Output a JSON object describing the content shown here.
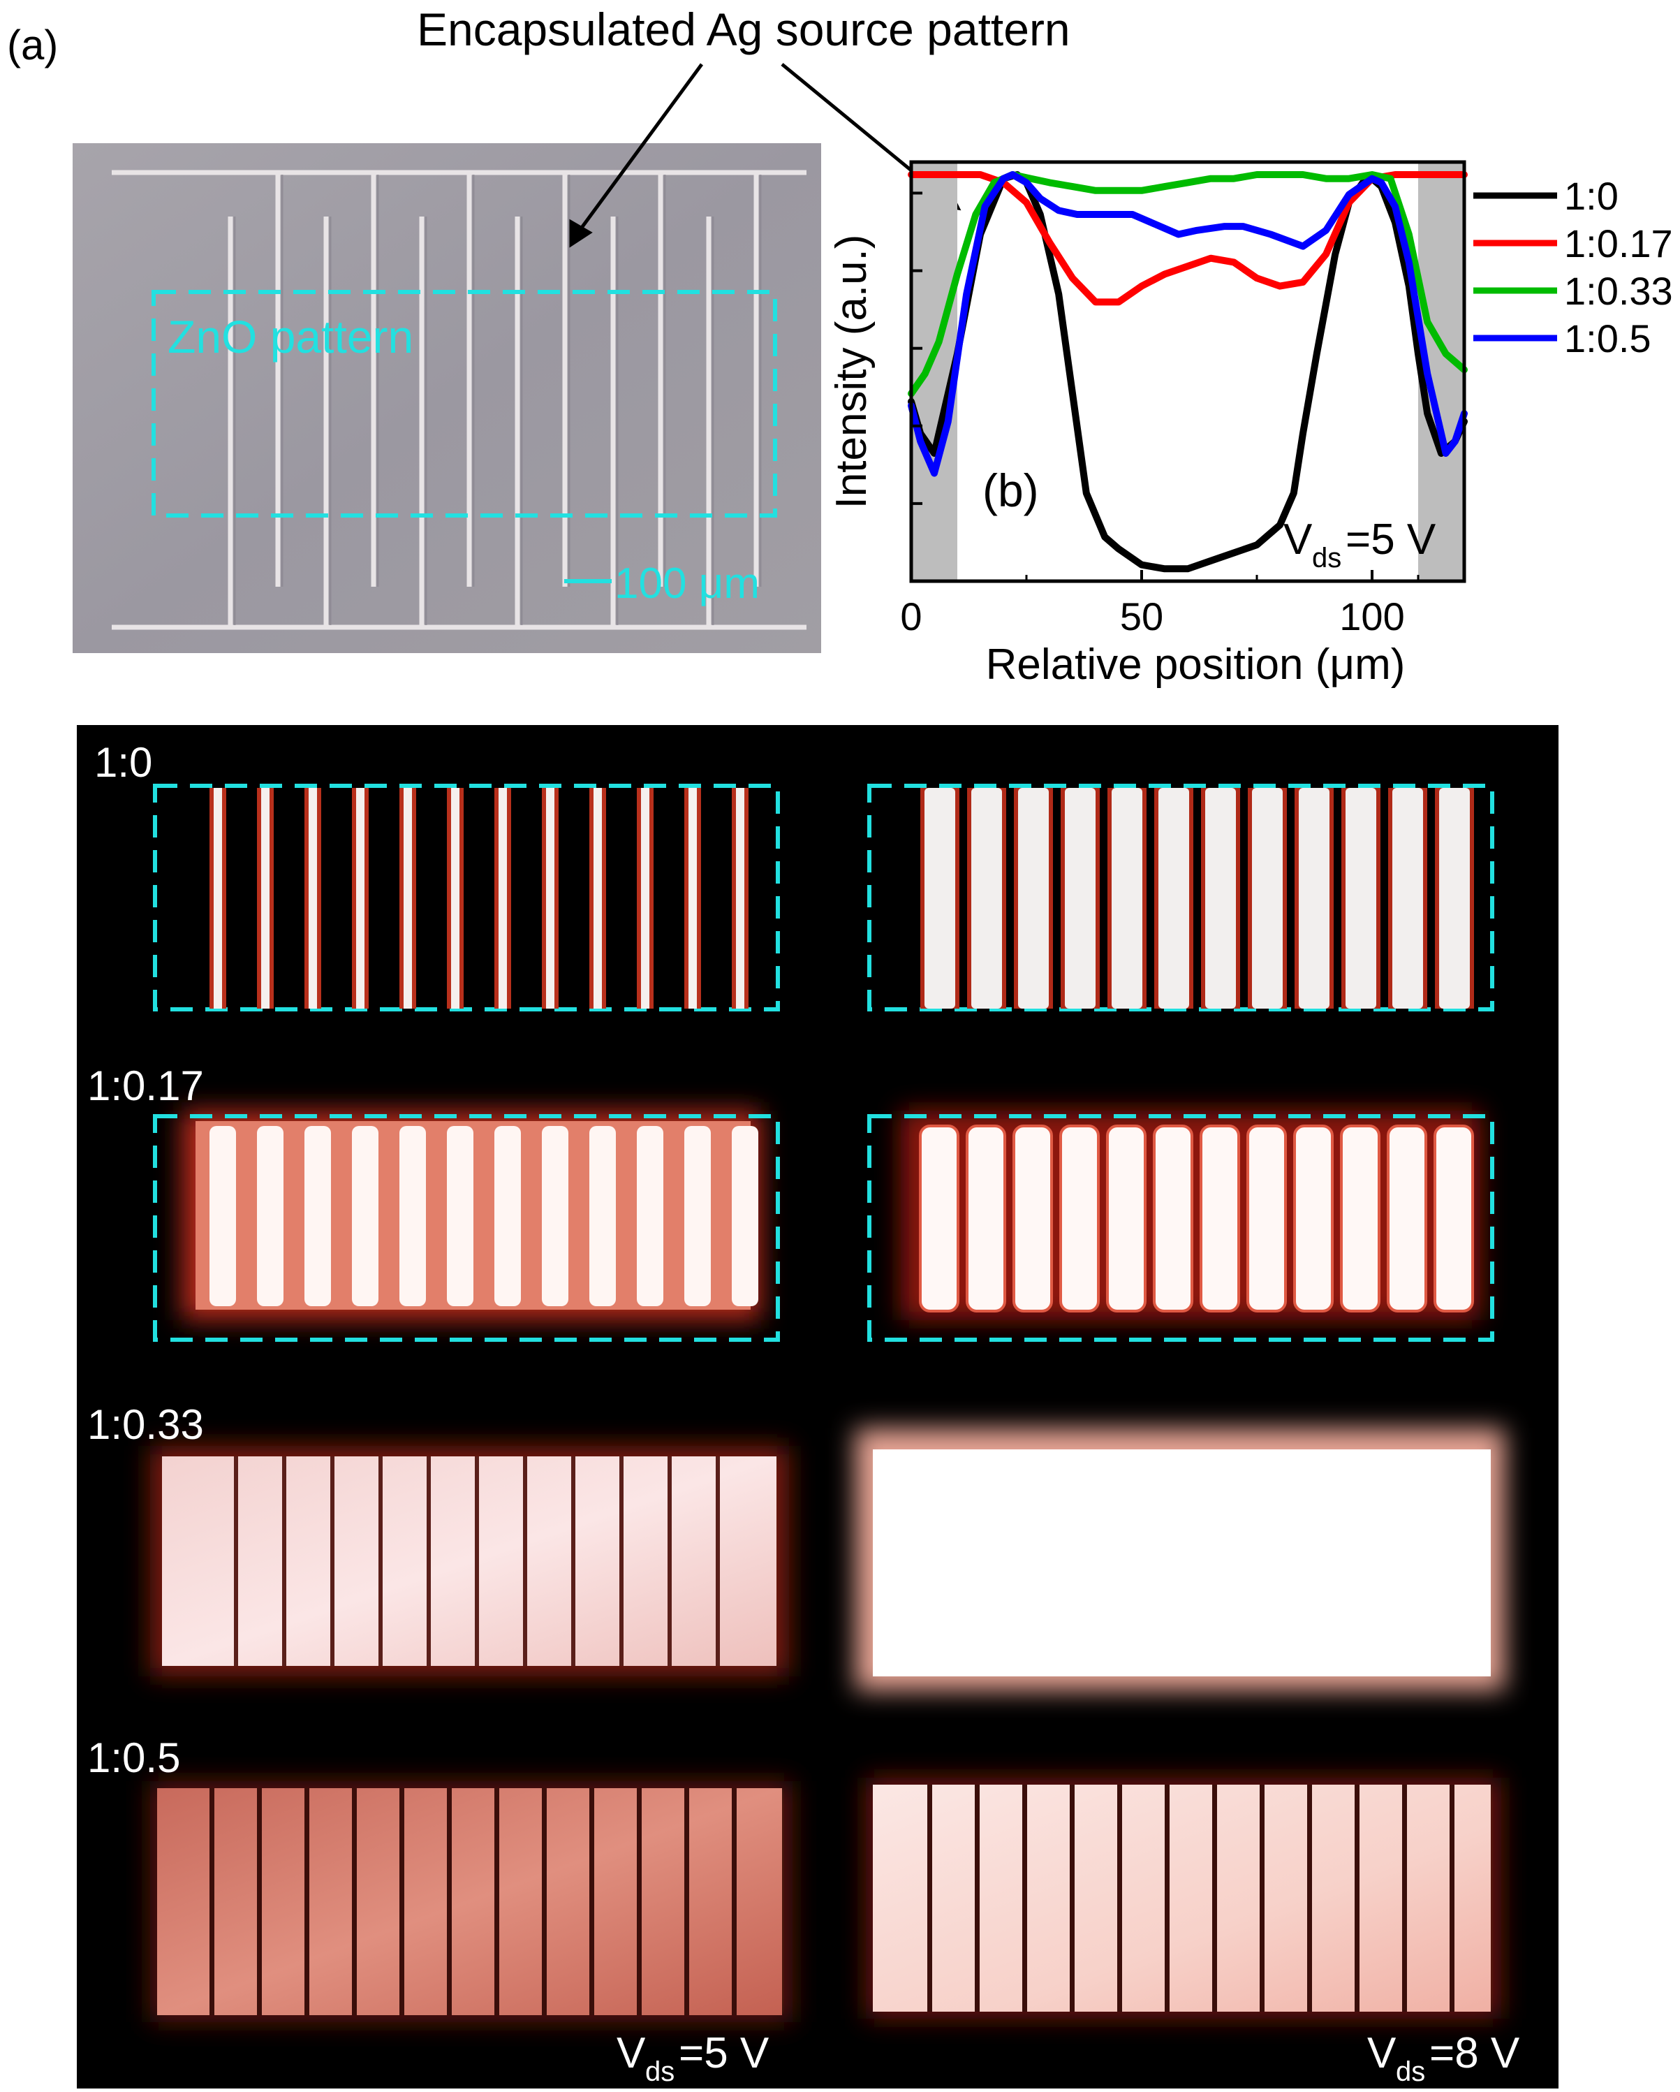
{
  "panel_a": {
    "label": "(a)",
    "header_annotation": "Encapsulated Ag source pattern",
    "zno_label": "ZnO pattern",
    "scale_bar": "100 μm"
  },
  "panel_b": {
    "label": "(b)",
    "bias_prefix": "V",
    "bias_subscript": "ds",
    "bias_value": "=5 V",
    "chart_data": {
      "type": "line",
      "title": "",
      "xlabel": "Relative position (μm)",
      "ylabel": "Intensity (a.u.)",
      "xlim": [
        0,
        120
      ],
      "ylim": [
        0,
        1
      ],
      "x_ticks": [
        "0",
        "50",
        "100"
      ],
      "y_ticks_labeled": false,
      "shaded_regions_x": [
        [
          0,
          10
        ],
        [
          110,
          120
        ]
      ],
      "legend_position": "right",
      "series": [
        {
          "name": "1:0",
          "color": "#000000",
          "x": [
            0,
            2,
            5,
            10,
            15,
            20,
            23,
            25,
            28,
            32,
            35,
            38,
            42,
            45,
            50,
            55,
            60,
            65,
            70,
            75,
            80,
            83,
            85,
            88,
            92,
            95,
            98,
            100,
            102,
            105,
            108,
            110,
            112,
            115,
            118,
            120
          ],
          "y": [
            0.43,
            0.35,
            0.3,
            0.55,
            0.85,
            0.99,
            1.0,
            0.98,
            0.9,
            0.7,
            0.45,
            0.2,
            0.09,
            0.06,
            0.02,
            0.01,
            0.01,
            0.03,
            0.05,
            0.07,
            0.12,
            0.2,
            0.35,
            0.55,
            0.8,
            0.93,
            0.98,
            0.99,
            0.97,
            0.88,
            0.72,
            0.55,
            0.4,
            0.3,
            0.33,
            0.38
          ]
        },
        {
          "name": "1:0.17",
          "color": "#ff0000",
          "x": [
            0,
            5,
            10,
            15,
            20,
            25,
            30,
            35,
            40,
            45,
            50,
            55,
            60,
            65,
            70,
            75,
            80,
            85,
            90,
            95,
            100,
            105,
            110,
            115,
            120
          ],
          "y": [
            1.0,
            1.0,
            1.0,
            1.0,
            0.98,
            0.93,
            0.83,
            0.74,
            0.68,
            0.68,
            0.72,
            0.75,
            0.77,
            0.79,
            0.78,
            0.74,
            0.72,
            0.73,
            0.8,
            0.93,
            0.99,
            1.0,
            1.0,
            1.0,
            1.0
          ]
        },
        {
          "name": "1:0.33",
          "color": "#00bb00",
          "x": [
            0,
            3,
            6,
            10,
            14,
            18,
            22,
            26,
            30,
            35,
            40,
            45,
            50,
            55,
            60,
            65,
            70,
            75,
            80,
            85,
            90,
            95,
            100,
            104,
            108,
            112,
            116,
            120
          ],
          "y": [
            0.45,
            0.5,
            0.58,
            0.75,
            0.9,
            0.98,
            1.0,
            0.99,
            0.98,
            0.97,
            0.96,
            0.96,
            0.96,
            0.97,
            0.98,
            0.99,
            0.99,
            1.0,
            1.0,
            1.0,
            0.99,
            0.99,
            1.0,
            0.99,
            0.85,
            0.63,
            0.55,
            0.51
          ]
        },
        {
          "name": "1:0.5",
          "color": "#0000ff",
          "x": [
            0,
            2,
            5,
            8,
            12,
            16,
            20,
            22,
            25,
            28,
            32,
            36,
            42,
            48,
            52,
            58,
            62,
            68,
            72,
            78,
            85,
            90,
            95,
            100,
            102,
            105,
            108,
            112,
            116,
            118,
            120
          ],
          "y": [
            0.42,
            0.33,
            0.25,
            0.38,
            0.7,
            0.92,
            0.99,
            1.0,
            0.98,
            0.94,
            0.91,
            0.9,
            0.9,
            0.9,
            0.88,
            0.85,
            0.86,
            0.87,
            0.87,
            0.85,
            0.82,
            0.86,
            0.95,
            0.99,
            0.98,
            0.92,
            0.78,
            0.5,
            0.3,
            0.33,
            0.4
          ]
        }
      ]
    }
  },
  "emission_grid": {
    "rows": [
      {
        "label": "1:0"
      },
      {
        "label": "1:0.17"
      },
      {
        "label": "1:0.33"
      },
      {
        "label": "1:0.5"
      }
    ],
    "left_bias": {
      "prefix": "V",
      "subscript": "ds",
      "value": "=5 V"
    },
    "right_bias": {
      "prefix": "V",
      "subscript": "ds",
      "value": "=8 V"
    }
  },
  "colors": {
    "cyan_dashed": "#22e0e0",
    "black_bg": "#000000"
  }
}
